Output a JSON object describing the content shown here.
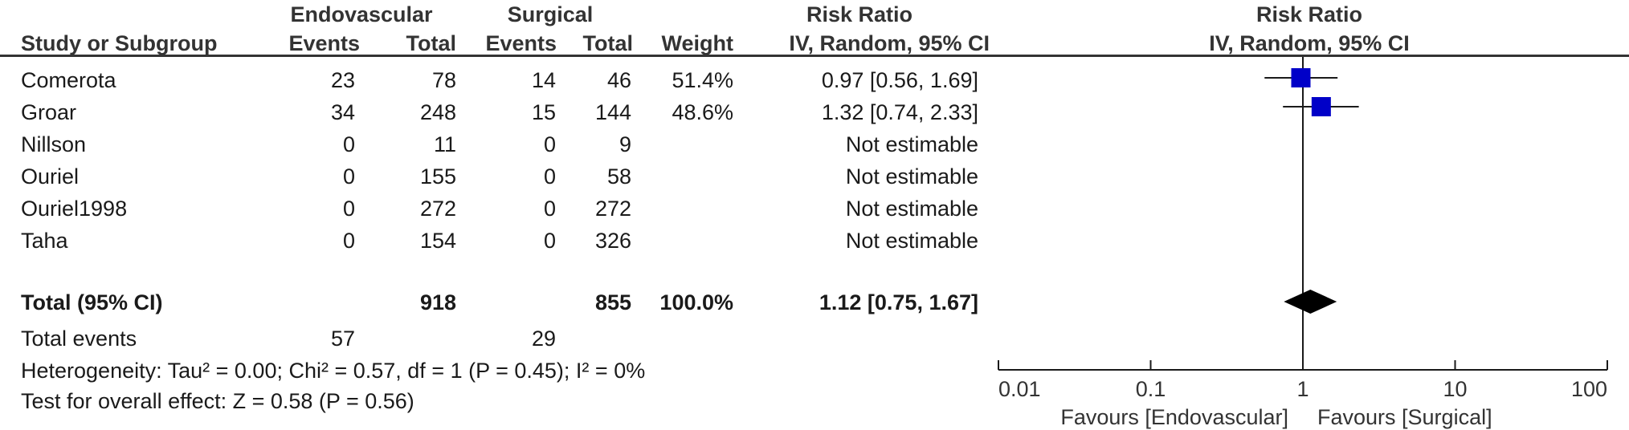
{
  "header": {
    "group1": "Endovascular",
    "group2": "Surgical",
    "ratio_table": "Risk Ratio",
    "ratio_plot": "Risk Ratio",
    "study_col": "Study or Subgroup",
    "events1": "Events",
    "total1": "Total",
    "events2": "Events",
    "total2": "Total",
    "weight": "Weight",
    "method_table": "IV, Random, 95% CI",
    "method_plot": "IV, Random, 95% CI"
  },
  "rows": [
    {
      "study": "Comerota",
      "e1": "23",
      "t1": "78",
      "e2": "14",
      "t2": "46",
      "weight": "51.4%",
      "ci": "0.97 [0.56, 1.69]"
    },
    {
      "study": "Groar",
      "e1": "34",
      "t1": "248",
      "e2": "15",
      "t2": "144",
      "weight": "48.6%",
      "ci": "1.32 [0.74, 2.33]"
    },
    {
      "study": "Nillson",
      "e1": "0",
      "t1": "11",
      "e2": "0",
      "t2": "9",
      "weight": "",
      "ci": "Not estimable"
    },
    {
      "study": "Ouriel",
      "e1": "0",
      "t1": "155",
      "e2": "0",
      "t2": "58",
      "weight": "",
      "ci": "Not estimable"
    },
    {
      "study": "Ouriel1998",
      "e1": "0",
      "t1": "272",
      "e2": "0",
      "t2": "272",
      "weight": "",
      "ci": "Not estimable"
    },
    {
      "study": "Taha",
      "e1": "0",
      "t1": "154",
      "e2": "0",
      "t2": "326",
      "weight": "",
      "ci": "Not estimable"
    }
  ],
  "total": {
    "label": "Total (95% CI)",
    "t1": "918",
    "t2": "855",
    "weight": "100.0%",
    "ci": "1.12 [0.75, 1.67]"
  },
  "events": {
    "label": "Total events",
    "e1": "57",
    "e2": "29"
  },
  "footer": {
    "heterogeneity": "Heterogeneity: Tau² = 0.00; Chi² = 0.57, df = 1 (P = 0.45); I² = 0%",
    "overall": "Test for overall effect: Z = 0.58 (P = 0.56)"
  },
  "colors": {
    "marker": "#0000c8",
    "diamond": "#000000",
    "line": "#1a1a1a"
  },
  "chart_data": {
    "type": "forest",
    "scale": "log",
    "xlim": [
      0.01,
      100
    ],
    "ticks": [
      0.01,
      0.1,
      1,
      10,
      100
    ],
    "tick_labels": [
      "0.01",
      "0.1",
      "1",
      "10",
      "100"
    ],
    "favours_left": "Favours [Endovascular]",
    "favours_right": "Favours [Surgical]",
    "studies": [
      {
        "name": "Comerota",
        "rr": 0.97,
        "lo": 0.56,
        "hi": 1.69,
        "weight": 51.4
      },
      {
        "name": "Groar",
        "rr": 1.32,
        "lo": 0.74,
        "hi": 2.33,
        "weight": 48.6
      }
    ],
    "pooled": {
      "rr": 1.12,
      "lo": 0.75,
      "hi": 1.67
    }
  }
}
